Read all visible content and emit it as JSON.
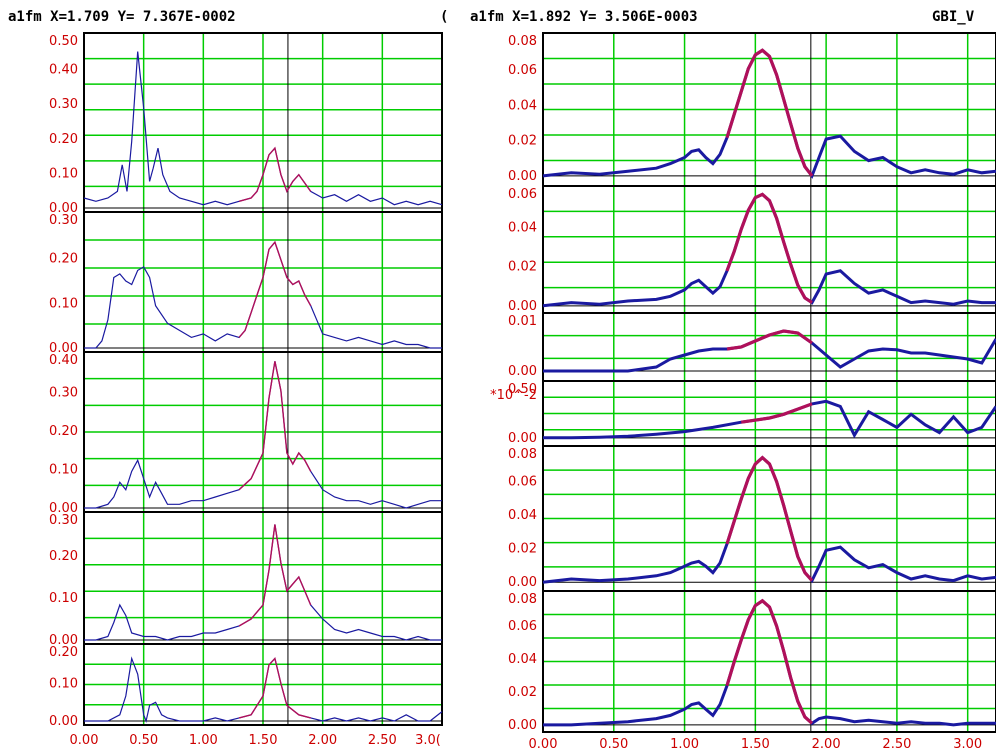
{
  "left_panel": {
    "header": "a1fm X=1.709 Y= 7.367E-0002",
    "header_right": "(",
    "x_ticks": [
      "0.00",
      "0.50",
      "1.00",
      "1.50",
      "2.00",
      "2.50",
      "3.0("
    ]
  },
  "right_panel": {
    "header": "a1fm X=1.892 Y= 3.506E-0003",
    "header_right": "GBI_V",
    "x_ticks": [
      "0.00",
      "0.50",
      "1.00",
      "1.50",
      "2.00",
      "2.50",
      "3.00"
    ]
  },
  "colors": {
    "header_text": "#c0158a",
    "tick_text": "#cc0000",
    "grid": "#00cc00",
    "trace": "#1a1aa0",
    "highlight": "#b0105a",
    "frame": "#000000"
  },
  "chart_data": [
    {
      "type": "line",
      "panel": "left",
      "index": 0,
      "ylim": [
        0,
        0.52
      ],
      "yticks": [
        "0.50",
        "0.40",
        "0.30",
        "0.20",
        "0.10",
        "0.00"
      ],
      "xlim": [
        0,
        3.0
      ],
      "cursor_x": 1.709,
      "series": [
        {
          "x": [
            0.0,
            0.1,
            0.2,
            0.28,
            0.32,
            0.36,
            0.4,
            0.45,
            0.5,
            0.55,
            0.58,
            0.62,
            0.66,
            0.72,
            0.8,
            0.9,
            1.0,
            1.1,
            1.2,
            1.3,
            1.4,
            1.45,
            1.5,
            1.55,
            1.6,
            1.65,
            1.7,
            1.75,
            1.8,
            1.9,
            2.0,
            2.1,
            2.2,
            2.3,
            2.4,
            2.5,
            2.6,
            2.7,
            2.8,
            2.9,
            3.0
          ],
          "y": [
            0.03,
            0.02,
            0.03,
            0.05,
            0.13,
            0.05,
            0.2,
            0.47,
            0.3,
            0.08,
            0.12,
            0.18,
            0.1,
            0.05,
            0.03,
            0.02,
            0.01,
            0.02,
            0.01,
            0.02,
            0.03,
            0.05,
            0.1,
            0.16,
            0.18,
            0.1,
            0.05,
            0.08,
            0.1,
            0.05,
            0.03,
            0.04,
            0.02,
            0.04,
            0.02,
            0.03,
            0.01,
            0.02,
            0.01,
            0.02,
            0.01
          ]
        }
      ]
    },
    {
      "type": "line",
      "panel": "left",
      "index": 1,
      "ylim": [
        0,
        0.38
      ],
      "yticks": [
        "0.30",
        "0.20",
        "0.10",
        "0.00"
      ],
      "xlim": [
        0,
        3.0
      ],
      "cursor_x": 1.709,
      "series": [
        {
          "x": [
            0.0,
            0.1,
            0.15,
            0.2,
            0.25,
            0.3,
            0.35,
            0.4,
            0.45,
            0.5,
            0.55,
            0.6,
            0.7,
            0.8,
            0.9,
            1.0,
            1.1,
            1.2,
            1.3,
            1.35,
            1.4,
            1.45,
            1.5,
            1.55,
            1.6,
            1.65,
            1.7,
            1.75,
            1.8,
            1.85,
            1.9,
            1.95,
            2.0,
            2.1,
            2.2,
            2.3,
            2.4,
            2.5,
            2.6,
            2.7,
            2.8,
            2.9,
            3.0
          ],
          "y": [
            0.0,
            0.0,
            0.02,
            0.08,
            0.2,
            0.21,
            0.19,
            0.18,
            0.22,
            0.23,
            0.2,
            0.12,
            0.07,
            0.05,
            0.03,
            0.04,
            0.02,
            0.04,
            0.03,
            0.05,
            0.1,
            0.15,
            0.2,
            0.28,
            0.3,
            0.25,
            0.2,
            0.18,
            0.19,
            0.15,
            0.12,
            0.08,
            0.04,
            0.03,
            0.02,
            0.03,
            0.02,
            0.01,
            0.02,
            0.01,
            0.01,
            0.0,
            0.0
          ]
        }
      ]
    },
    {
      "type": "line",
      "panel": "left",
      "index": 2,
      "ylim": [
        0,
        0.42
      ],
      "yticks": [
        "0.40",
        "0.30",
        "0.20",
        "0.10",
        "0.00"
      ],
      "xlim": [
        0,
        3.0
      ],
      "cursor_x": 1.709,
      "series": [
        {
          "x": [
            0.0,
            0.1,
            0.2,
            0.25,
            0.3,
            0.35,
            0.4,
            0.45,
            0.5,
            0.55,
            0.6,
            0.65,
            0.7,
            0.8,
            0.9,
            1.0,
            1.1,
            1.2,
            1.3,
            1.4,
            1.5,
            1.55,
            1.6,
            1.65,
            1.7,
            1.75,
            1.8,
            1.85,
            1.9,
            2.0,
            2.1,
            2.2,
            2.3,
            2.4,
            2.5,
            2.6,
            2.7,
            2.8,
            2.9,
            3.0
          ],
          "y": [
            0.0,
            0.0,
            0.01,
            0.03,
            0.07,
            0.05,
            0.1,
            0.13,
            0.08,
            0.03,
            0.07,
            0.04,
            0.01,
            0.01,
            0.02,
            0.02,
            0.03,
            0.04,
            0.05,
            0.08,
            0.15,
            0.3,
            0.4,
            0.32,
            0.15,
            0.12,
            0.15,
            0.13,
            0.1,
            0.05,
            0.03,
            0.02,
            0.02,
            0.01,
            0.02,
            0.01,
            0.0,
            0.01,
            0.02,
            0.02
          ]
        }
      ]
    },
    {
      "type": "line",
      "panel": "left",
      "index": 3,
      "ylim": [
        0,
        0.36
      ],
      "yticks": [
        "0.30",
        "0.20",
        "0.10",
        "0.00"
      ],
      "xlim": [
        0,
        3.0
      ],
      "cursor_x": 1.709,
      "series": [
        {
          "x": [
            0.0,
            0.1,
            0.2,
            0.25,
            0.3,
            0.35,
            0.4,
            0.5,
            0.6,
            0.7,
            0.8,
            0.9,
            1.0,
            1.1,
            1.2,
            1.3,
            1.4,
            1.5,
            1.55,
            1.6,
            1.65,
            1.7,
            1.75,
            1.8,
            1.85,
            1.9,
            2.0,
            2.1,
            2.2,
            2.3,
            2.4,
            2.5,
            2.6,
            2.7,
            2.8,
            2.9,
            3.0
          ],
          "y": [
            0.0,
            0.0,
            0.01,
            0.05,
            0.1,
            0.07,
            0.02,
            0.01,
            0.01,
            0.0,
            0.01,
            0.01,
            0.02,
            0.02,
            0.03,
            0.04,
            0.06,
            0.1,
            0.2,
            0.33,
            0.22,
            0.14,
            0.16,
            0.18,
            0.14,
            0.1,
            0.06,
            0.03,
            0.02,
            0.03,
            0.02,
            0.01,
            0.01,
            0.0,
            0.01,
            0.0,
            0.0
          ]
        }
      ]
    },
    {
      "type": "line",
      "panel": "left",
      "index": 4,
      "ylim": [
        0,
        0.24
      ],
      "yticks": [
        "0.20",
        "0.10",
        "0.00"
      ],
      "xlim": [
        0,
        3.0
      ],
      "cursor_x": 1.709,
      "series": [
        {
          "x": [
            0.0,
            0.1,
            0.2,
            0.3,
            0.35,
            0.4,
            0.45,
            0.5,
            0.52,
            0.55,
            0.6,
            0.65,
            0.7,
            0.8,
            0.9,
            1.0,
            1.1,
            1.2,
            1.3,
            1.4,
            1.5,
            1.55,
            1.6,
            1.65,
            1.7,
            1.8,
            1.9,
            2.0,
            2.1,
            2.2,
            2.3,
            2.4,
            2.5,
            2.6,
            2.7,
            2.8,
            2.9,
            3.0
          ],
          "y": [
            0.0,
            0.0,
            0.0,
            0.02,
            0.08,
            0.2,
            0.15,
            0.02,
            0.0,
            0.05,
            0.06,
            0.02,
            0.01,
            0.0,
            0.0,
            0.0,
            0.01,
            0.0,
            0.01,
            0.02,
            0.08,
            0.18,
            0.2,
            0.12,
            0.05,
            0.02,
            0.01,
            0.0,
            0.01,
            0.0,
            0.01,
            0.0,
            0.01,
            0.0,
            0.02,
            0.0,
            0.0,
            0.03
          ]
        }
      ]
    },
    {
      "type": "line",
      "panel": "right",
      "index": 0,
      "ylim": [
        -0.004,
        0.092
      ],
      "yticks": [
        "0.08",
        "0.06",
        "0.04",
        "0.02",
        "0.00"
      ],
      "xlim": [
        0,
        3.2
      ],
      "cursor_x": 1.892,
      "series": [
        {
          "x": [
            0.0,
            0.2,
            0.4,
            0.6,
            0.8,
            0.9,
            1.0,
            1.05,
            1.1,
            1.15,
            1.2,
            1.25,
            1.3,
            1.35,
            1.4,
            1.45,
            1.5,
            1.55,
            1.6,
            1.65,
            1.7,
            1.75,
            1.8,
            1.85,
            1.9,
            1.95,
            2.0,
            2.1,
            2.2,
            2.3,
            2.4,
            2.5,
            2.6,
            2.7,
            2.8,
            2.9,
            3.0,
            3.1,
            3.2
          ],
          "y": [
            0.0,
            0.002,
            0.001,
            0.003,
            0.005,
            0.008,
            0.012,
            0.016,
            0.017,
            0.012,
            0.008,
            0.014,
            0.025,
            0.04,
            0.055,
            0.07,
            0.079,
            0.082,
            0.078,
            0.066,
            0.05,
            0.034,
            0.018,
            0.006,
            0.0,
            0.012,
            0.024,
            0.026,
            0.016,
            0.01,
            0.012,
            0.006,
            0.002,
            0.004,
            0.002,
            0.001,
            0.004,
            0.002,
            0.003
          ]
        }
      ]
    },
    {
      "type": "line",
      "panel": "right",
      "index": 1,
      "ylim": [
        -0.002,
        0.074
      ],
      "yticks": [
        "0.06",
        "0.04",
        "0.02",
        "0.00"
      ],
      "xlim": [
        0,
        3.2
      ],
      "cursor_x": 1.892,
      "series": [
        {
          "x": [
            0.0,
            0.2,
            0.4,
            0.6,
            0.8,
            0.9,
            1.0,
            1.05,
            1.1,
            1.15,
            1.2,
            1.25,
            1.3,
            1.35,
            1.4,
            1.45,
            1.5,
            1.55,
            1.6,
            1.65,
            1.7,
            1.75,
            1.8,
            1.85,
            1.9,
            1.95,
            2.0,
            2.1,
            2.2,
            2.3,
            2.4,
            2.5,
            2.6,
            2.7,
            2.8,
            2.9,
            3.0,
            3.1,
            3.2
          ],
          "y": [
            0.0,
            0.002,
            0.001,
            0.003,
            0.004,
            0.006,
            0.01,
            0.014,
            0.016,
            0.012,
            0.008,
            0.012,
            0.022,
            0.034,
            0.048,
            0.06,
            0.068,
            0.07,
            0.066,
            0.055,
            0.04,
            0.026,
            0.013,
            0.005,
            0.002,
            0.01,
            0.02,
            0.022,
            0.014,
            0.008,
            0.01,
            0.006,
            0.002,
            0.003,
            0.002,
            0.001,
            0.003,
            0.002,
            0.002
          ]
        }
      ]
    },
    {
      "type": "line",
      "panel": "right",
      "index": 2,
      "ylim": [
        -0.0015,
        0.014
      ],
      "yticks": [
        "0.01",
        "0.00"
      ],
      "xlim": [
        0,
        3.2
      ],
      "cursor_x": 1.892,
      "series": [
        {
          "x": [
            0.0,
            0.2,
            0.4,
            0.6,
            0.8,
            0.9,
            1.0,
            1.1,
            1.2,
            1.3,
            1.4,
            1.5,
            1.6,
            1.7,
            1.8,
            1.9,
            2.0,
            2.1,
            2.2,
            2.3,
            2.4,
            2.5,
            2.6,
            2.7,
            2.8,
            2.9,
            3.0,
            3.1,
            3.2
          ],
          "y": [
            0.0,
            0.0,
            0.0,
            0.0,
            0.001,
            0.003,
            0.004,
            0.005,
            0.0055,
            0.0055,
            0.006,
            0.0075,
            0.009,
            0.01,
            0.0095,
            0.007,
            0.004,
            0.001,
            0.003,
            0.005,
            0.0055,
            0.0053,
            0.0045,
            0.0045,
            0.004,
            0.0035,
            0.003,
            0.002,
            0.008
          ]
        }
      ]
    },
    {
      "type": "line",
      "panel": "right",
      "index": 3,
      "ylim": [
        -0.08,
        1.05
      ],
      "yticks": [
        "*10^-2",
        "0.50",
        "0.00"
      ],
      "y_scale_label": "*10^-2",
      "xlim": [
        0,
        3.2
      ],
      "cursor_x": 1.892,
      "series": [
        {
          "x": [
            0.0,
            0.2,
            0.4,
            0.6,
            0.8,
            1.0,
            1.2,
            1.4,
            1.6,
            1.7,
            1.8,
            1.9,
            2.0,
            2.1,
            2.2,
            2.3,
            2.4,
            2.5,
            2.6,
            2.7,
            2.8,
            2.9,
            3.0,
            3.1,
            3.2
          ],
          "y": [
            0.0,
            0.0,
            0.01,
            0.03,
            0.07,
            0.12,
            0.2,
            0.3,
            0.38,
            0.45,
            0.55,
            0.65,
            0.7,
            0.6,
            0.05,
            0.5,
            0.35,
            0.2,
            0.45,
            0.25,
            0.1,
            0.4,
            0.1,
            0.2,
            0.6
          ]
        }
      ]
    },
    {
      "type": "line",
      "panel": "right",
      "index": 4,
      "ylim": [
        -0.003,
        0.084
      ],
      "yticks": [
        "0.08",
        "0.06",
        "0.04",
        "0.02",
        "0.00"
      ],
      "xlim": [
        0,
        3.2
      ],
      "cursor_x": 1.892,
      "series": [
        {
          "x": [
            0.0,
            0.2,
            0.4,
            0.6,
            0.8,
            0.9,
            1.0,
            1.05,
            1.1,
            1.15,
            1.2,
            1.25,
            1.3,
            1.35,
            1.4,
            1.45,
            1.5,
            1.55,
            1.6,
            1.65,
            1.7,
            1.75,
            1.8,
            1.85,
            1.9,
            1.95,
            2.0,
            2.1,
            2.2,
            2.3,
            2.4,
            2.5,
            2.6,
            2.7,
            2.8,
            2.9,
            3.0,
            3.1,
            3.2
          ],
          "y": [
            0.0,
            0.002,
            0.001,
            0.002,
            0.004,
            0.006,
            0.01,
            0.012,
            0.013,
            0.01,
            0.006,
            0.012,
            0.024,
            0.038,
            0.052,
            0.065,
            0.074,
            0.078,
            0.074,
            0.063,
            0.048,
            0.032,
            0.016,
            0.006,
            0.001,
            0.01,
            0.02,
            0.022,
            0.014,
            0.009,
            0.011,
            0.006,
            0.002,
            0.004,
            0.002,
            0.001,
            0.004,
            0.002,
            0.003
          ]
        }
      ]
    },
    {
      "type": "line",
      "panel": "right",
      "index": 5,
      "ylim": [
        -0.002,
        0.084
      ],
      "yticks": [
        "0.08",
        "0.06",
        "0.04",
        "0.02",
        "0.00"
      ],
      "xlim": [
        0,
        3.2
      ],
      "cursor_x": 1.892,
      "series": [
        {
          "x": [
            0.0,
            0.2,
            0.4,
            0.6,
            0.8,
            0.9,
            1.0,
            1.05,
            1.1,
            1.15,
            1.2,
            1.25,
            1.3,
            1.35,
            1.4,
            1.45,
            1.5,
            1.55,
            1.6,
            1.65,
            1.7,
            1.75,
            1.8,
            1.85,
            1.9,
            1.95,
            2.0,
            2.1,
            2.2,
            2.3,
            2.4,
            2.5,
            2.6,
            2.7,
            2.8,
            2.9,
            3.0,
            3.1,
            3.2
          ],
          "y": [
            0.0,
            0.0,
            0.001,
            0.002,
            0.004,
            0.006,
            0.01,
            0.013,
            0.014,
            0.01,
            0.006,
            0.013,
            0.025,
            0.04,
            0.054,
            0.067,
            0.076,
            0.079,
            0.075,
            0.063,
            0.047,
            0.03,
            0.015,
            0.005,
            0.001,
            0.004,
            0.005,
            0.004,
            0.002,
            0.003,
            0.002,
            0.001,
            0.002,
            0.001,
            0.001,
            0.0,
            0.001,
            0.001,
            0.001
          ]
        }
      ]
    }
  ]
}
